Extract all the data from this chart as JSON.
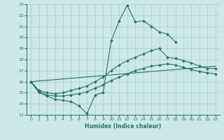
{
  "xlabel": "Humidex (Indice chaleur)",
  "bg_color": "#cce8e8",
  "grid_color": "#aacece",
  "line_color": "#2a7068",
  "xlim": [
    -0.5,
    23.5
  ],
  "ylim": [
    13,
    23
  ],
  "xticks": [
    0,
    1,
    2,
    3,
    4,
    5,
    6,
    7,
    8,
    9,
    10,
    11,
    12,
    13,
    14,
    15,
    16,
    17,
    18,
    19,
    20,
    21,
    22,
    23
  ],
  "yticks": [
    13,
    14,
    15,
    16,
    17,
    18,
    19,
    20,
    21,
    22,
    23
  ],
  "line1_x": [
    0,
    1,
    2,
    3,
    4,
    5,
    6,
    7,
    8,
    9,
    10,
    11,
    12,
    13,
    14,
    15,
    16,
    17,
    18
  ],
  "line1_y": [
    16.0,
    15.0,
    14.7,
    14.4,
    14.3,
    14.2,
    13.8,
    13.1,
    14.8,
    15.0,
    19.7,
    21.5,
    22.9,
    21.4,
    21.5,
    21.0,
    20.5,
    20.3,
    19.6
  ],
  "line2_x": [
    0,
    1,
    2,
    3,
    4,
    5,
    6,
    7,
    8,
    9,
    10,
    11,
    12,
    13,
    14,
    15,
    16,
    17,
    18,
    19,
    20,
    21,
    22,
    23
  ],
  "line2_y": [
    16.0,
    15.2,
    15.0,
    14.9,
    15.0,
    15.2,
    15.4,
    15.6,
    16.0,
    16.4,
    17.0,
    17.5,
    17.9,
    18.2,
    18.5,
    18.8,
    19.0,
    18.2,
    18.1,
    17.9,
    17.7,
    17.4,
    17.2,
    17.2
  ],
  "line3_x": [
    0,
    1,
    2,
    3,
    4,
    5,
    6,
    7,
    8,
    9,
    10,
    11,
    12,
    13,
    14,
    15,
    16,
    17,
    18,
    19,
    20,
    21,
    22,
    23
  ],
  "line3_y": [
    16.0,
    15.1,
    14.8,
    14.7,
    14.7,
    14.8,
    14.9,
    15.1,
    15.4,
    15.7,
    16.1,
    16.4,
    16.7,
    17.0,
    17.2,
    17.4,
    17.5,
    17.6,
    17.5,
    17.3,
    17.1,
    16.9,
    16.8,
    16.7
  ],
  "line4_x": [
    0,
    23
  ],
  "line4_y": [
    16.0,
    17.4
  ]
}
